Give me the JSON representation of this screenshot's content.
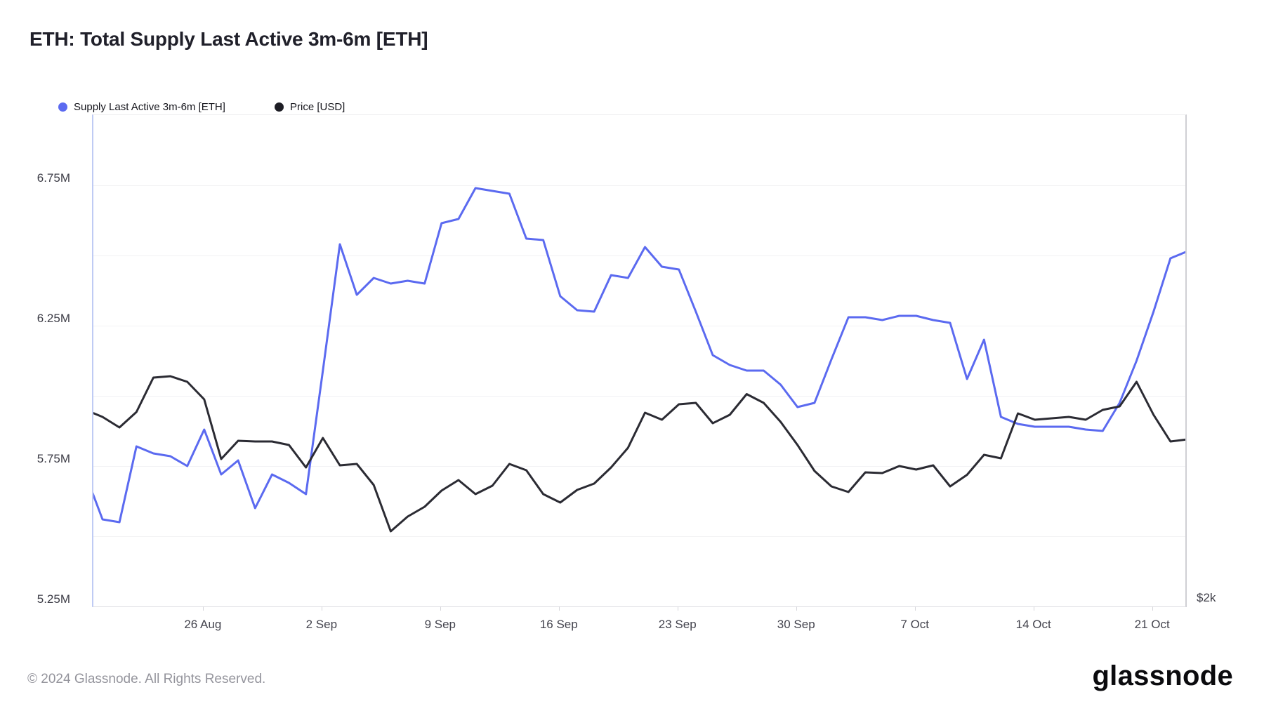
{
  "title": "ETH: Total Supply Last Active 3m-6m [ETH]",
  "legend": [
    {
      "label": "Supply Last Active 3m-6m [ETH]",
      "color": "#5b6af0"
    },
    {
      "label": "Price [USD]",
      "color": "#1d1d25"
    }
  ],
  "footer": {
    "copyright": "© 2024 Glassnode. All Rights Reserved.",
    "brand": "glassnode"
  },
  "right_axis": {
    "label": "$2k"
  },
  "chart_data": {
    "type": "line",
    "x": [
      "19 Aug",
      "20 Aug",
      "21 Aug",
      "22 Aug",
      "23 Aug",
      "24 Aug",
      "25 Aug",
      "26 Aug",
      "27 Aug",
      "28 Aug",
      "29 Aug",
      "30 Aug",
      "31 Aug",
      "1 Sep",
      "2 Sep",
      "3 Sep",
      "4 Sep",
      "5 Sep",
      "6 Sep",
      "7 Sep",
      "8 Sep",
      "9 Sep",
      "10 Sep",
      "11 Sep",
      "12 Sep",
      "13 Sep",
      "14 Sep",
      "15 Sep",
      "16 Sep",
      "17 Sep",
      "18 Sep",
      "19 Sep",
      "20 Sep",
      "21 Sep",
      "22 Sep",
      "23 Sep",
      "24 Sep",
      "25 Sep",
      "26 Sep",
      "27 Sep",
      "28 Sep",
      "29 Sep",
      "30 Sep",
      "1 Oct",
      "2 Oct",
      "3 Oct",
      "4 Oct",
      "5 Oct",
      "6 Oct",
      "7 Oct",
      "8 Oct",
      "9 Oct",
      "10 Oct",
      "11 Oct",
      "12 Oct",
      "13 Oct",
      "14 Oct",
      "15 Oct",
      "16 Oct",
      "17 Oct",
      "18 Oct",
      "19 Oct",
      "20 Oct",
      "21 Oct",
      "22 Oct",
      "23 Oct"
    ],
    "series": [
      {
        "name": "Supply Last Active 3m-6m [ETH]",
        "axis": "left",
        "unit": "M ETH",
        "color": "#5b6af0",
        "values": [
          5.72,
          5.56,
          5.55,
          5.82,
          5.795,
          5.785,
          5.75,
          5.88,
          5.72,
          5.77,
          5.6,
          5.72,
          5.69,
          5.65,
          6.09,
          6.54,
          6.36,
          6.42,
          6.4,
          6.41,
          6.4,
          6.615,
          6.63,
          6.74,
          6.73,
          6.72,
          6.56,
          6.555,
          6.355,
          6.305,
          6.3,
          6.43,
          6.42,
          6.53,
          6.46,
          6.45,
          6.3,
          6.145,
          6.11,
          6.09,
          6.09,
          6.04,
          5.96,
          5.975,
          6.13,
          6.28,
          6.28,
          6.27,
          6.285,
          6.285,
          6.27,
          6.26,
          6.06,
          6.2,
          5.925,
          5.9,
          5.89,
          5.89,
          5.89,
          5.88,
          5.875,
          5.975,
          6.125,
          6.3,
          6.49,
          6.515
        ]
      },
      {
        "name": "Price [USD]",
        "axis": "right",
        "unit": "USD",
        "color": "#2b2b33",
        "values": [
          2560,
          2540,
          2510,
          2554,
          2652,
          2656,
          2640,
          2590,
          2420,
          2472,
          2470,
          2470,
          2460,
          2396,
          2480,
          2402,
          2406,
          2346,
          2214,
          2256,
          2284,
          2330,
          2360,
          2320,
          2344,
          2406,
          2388,
          2320,
          2296,
          2332,
          2350,
          2396,
          2452,
          2552,
          2532,
          2576,
          2580,
          2522,
          2546,
          2605,
          2580,
          2526,
          2460,
          2386,
          2342,
          2326,
          2382,
          2380,
          2400,
          2390,
          2402,
          2342,
          2375,
          2432,
          2422,
          2550,
          2532,
          2536,
          2540,
          2532,
          2560,
          2570,
          2640,
          2546,
          2470,
          2476
        ]
      }
    ],
    "left_axis": {
      "ylim": [
        5.25,
        7.0
      ],
      "tick_labels": [
        {
          "value": 6.75,
          "label": "6.75M"
        },
        {
          "value": 6.25,
          "label": "6.25M"
        },
        {
          "value": 5.75,
          "label": "5.75M"
        },
        {
          "value": 5.25,
          "label": "5.25M"
        }
      ],
      "gridline_values": [
        6.75,
        6.5,
        6.25,
        6.0,
        5.75,
        5.5
      ]
    },
    "right_axis": {
      "ylim": [
        2000,
        3400
      ],
      "tick_labels": [
        {
          "value": 2000,
          "label": "$2k"
        }
      ]
    },
    "x_ticks": [
      {
        "index": 7,
        "label": "26 Aug"
      },
      {
        "index": 14,
        "label": "2 Sep"
      },
      {
        "index": 21,
        "label": "9 Sep"
      },
      {
        "index": 28,
        "label": "16 Sep"
      },
      {
        "index": 35,
        "label": "23 Sep"
      },
      {
        "index": 42,
        "label": "30 Sep"
      },
      {
        "index": 49,
        "label": "7 Oct"
      },
      {
        "index": 56,
        "label": "14 Oct"
      },
      {
        "index": 63,
        "label": "21 Oct"
      }
    ],
    "legend_position": "top-left",
    "grid": "horizontal-only"
  }
}
